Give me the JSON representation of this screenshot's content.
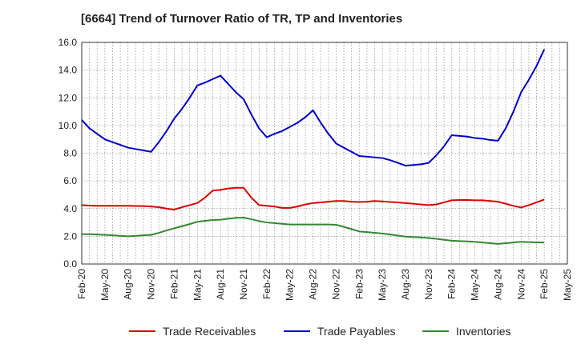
{
  "chart_data": {
    "type": "line",
    "title": "[6664]  Trend of Turnover Ratio of TR, TP and Inventories",
    "xlabel": "",
    "ylabel": "",
    "ylim": [
      0,
      16
    ],
    "y_ticks": [
      "0.0",
      "2.0",
      "4.0",
      "6.0",
      "8.0",
      "10.0",
      "12.0",
      "14.0",
      "16.0"
    ],
    "x_ticks": [
      "Feb-20",
      "May-20",
      "Aug-20",
      "Nov-20",
      "Feb-21",
      "May-21",
      "Aug-21",
      "Nov-21",
      "Feb-22",
      "May-22",
      "Aug-22",
      "Nov-22",
      "Feb-23",
      "May-23",
      "Aug-23",
      "Nov-23",
      "Feb-24",
      "May-24",
      "Aug-24",
      "Nov-24",
      "Feb-25",
      "May-25"
    ],
    "grid": true,
    "legend_position": "bottom",
    "x": [
      "Feb-20",
      "Mar-20",
      "Apr-20",
      "May-20",
      "Jun-20",
      "Jul-20",
      "Aug-20",
      "Sep-20",
      "Oct-20",
      "Nov-20",
      "Dec-20",
      "Jan-21",
      "Feb-21",
      "Mar-21",
      "Apr-21",
      "May-21",
      "Jun-21",
      "Jul-21",
      "Aug-21",
      "Sep-21",
      "Oct-21",
      "Nov-21",
      "Dec-21",
      "Jan-22",
      "Feb-22",
      "Mar-22",
      "Apr-22",
      "May-22",
      "Jun-22",
      "Jul-22",
      "Aug-22",
      "Sep-22",
      "Oct-22",
      "Nov-22",
      "Dec-22",
      "Jan-23",
      "Feb-23",
      "Mar-23",
      "Apr-23",
      "May-23",
      "Jun-23",
      "Jul-23",
      "Aug-23",
      "Sep-23",
      "Oct-23",
      "Nov-23",
      "Dec-23",
      "Jan-24",
      "Feb-24",
      "Mar-24",
      "Apr-24",
      "May-24",
      "Jun-24",
      "Jul-24",
      "Aug-24",
      "Sep-24",
      "Oct-24",
      "Nov-24",
      "Dec-24",
      "Jan-25",
      "Feb-25"
    ],
    "series": [
      {
        "name": "Trade Receivables",
        "color": "#dd0000",
        "values": [
          4.25,
          4.22,
          4.2,
          4.2,
          4.2,
          4.2,
          4.2,
          4.19,
          4.18,
          4.15,
          4.1,
          4.0,
          3.93,
          4.1,
          4.25,
          4.4,
          4.8,
          5.3,
          5.35,
          5.45,
          5.5,
          5.5,
          4.8,
          4.25,
          4.2,
          4.15,
          4.05,
          4.05,
          4.15,
          4.3,
          4.4,
          4.45,
          4.5,
          4.55,
          4.55,
          4.5,
          4.48,
          4.5,
          4.55,
          4.52,
          4.48,
          4.45,
          4.4,
          4.35,
          4.3,
          4.25,
          4.3,
          4.45,
          4.6,
          4.62,
          4.62,
          4.6,
          4.6,
          4.55,
          4.5,
          4.35,
          4.2,
          4.08,
          4.25,
          4.45,
          4.65
        ]
      },
      {
        "name": "Trade Payables",
        "color": "#0000cc",
        "values": [
          10.4,
          9.8,
          9.4,
          9.0,
          8.8,
          8.6,
          8.4,
          8.3,
          8.2,
          8.1,
          8.8,
          9.6,
          10.5,
          11.2,
          12.0,
          12.9,
          13.1,
          13.35,
          13.6,
          13.0,
          12.4,
          11.9,
          10.8,
          9.8,
          9.15,
          9.4,
          9.6,
          9.9,
          10.2,
          10.6,
          11.1,
          10.2,
          9.4,
          8.7,
          8.4,
          8.1,
          7.8,
          7.75,
          7.7,
          7.65,
          7.5,
          7.3,
          7.1,
          7.15,
          7.2,
          7.3,
          7.85,
          8.5,
          9.3,
          9.25,
          9.2,
          9.1,
          9.05,
          8.95,
          8.9,
          9.8,
          11.0,
          12.4,
          13.3,
          14.3,
          15.5
        ]
      },
      {
        "name": "Inventories",
        "color": "#338833",
        "values": [
          2.15,
          2.15,
          2.13,
          2.1,
          2.07,
          2.03,
          2.0,
          2.03,
          2.07,
          2.1,
          2.25,
          2.42,
          2.58,
          2.73,
          2.88,
          3.05,
          3.12,
          3.18,
          3.2,
          3.27,
          3.33,
          3.35,
          3.23,
          3.1,
          3.0,
          2.95,
          2.9,
          2.85,
          2.85,
          2.85,
          2.85,
          2.85,
          2.85,
          2.83,
          2.68,
          2.52,
          2.35,
          2.3,
          2.25,
          2.2,
          2.13,
          2.05,
          1.98,
          1.95,
          1.92,
          1.88,
          1.82,
          1.75,
          1.68,
          1.65,
          1.63,
          1.6,
          1.55,
          1.5,
          1.45,
          1.5,
          1.55,
          1.6,
          1.58,
          1.56,
          1.55
        ]
      }
    ]
  }
}
